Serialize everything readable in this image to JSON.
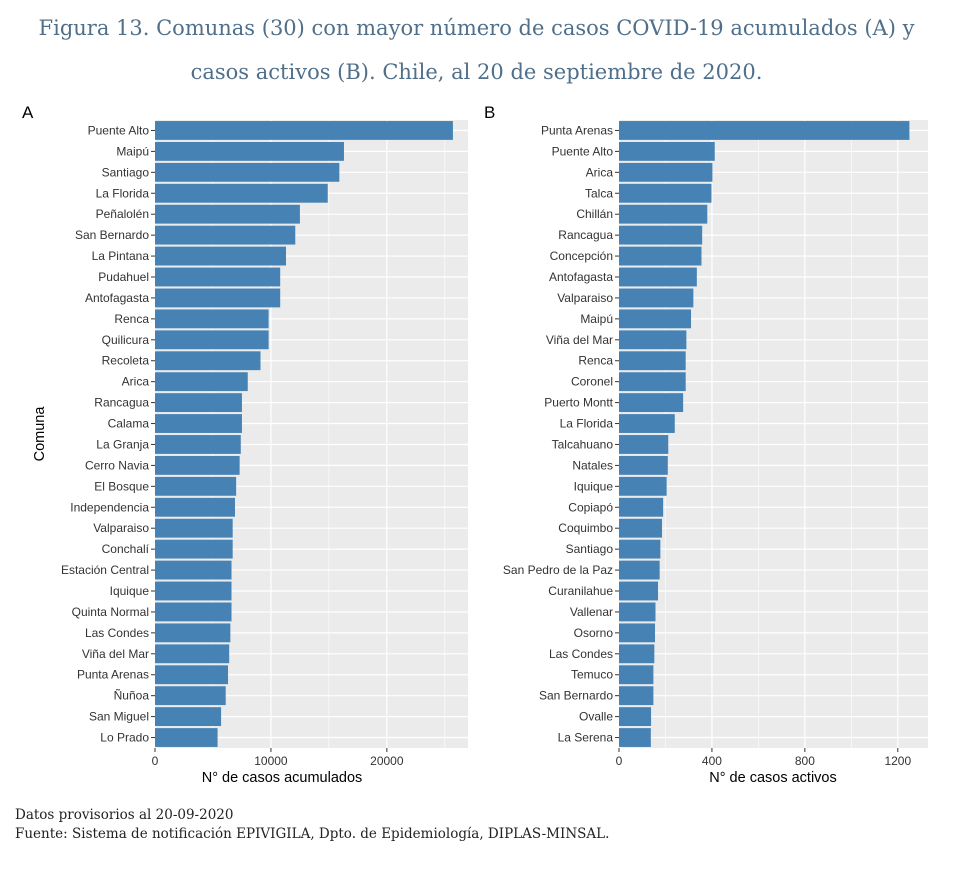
{
  "title_line1": "Figura 13. Comunas (30) con mayor número de casos COVID-19 acumulados (A) y",
  "title_line2": "casos activos (B). Chile, al 20 de septiembre de 2020.",
  "footer": {
    "line1": "Datos provisorios al 20-09-2020",
    "line2": "Fuente: Sistema de notificación EPIVIGILA, Dpto. de Epidemiología, DIPLAS-MINSAL."
  },
  "colors": {
    "bar": "#4682b4",
    "panel_bg": "#ebebeb",
    "grid": "#ffffff",
    "title": "#4f6f8a"
  },
  "chart_data": [
    {
      "type": "bar",
      "orientation": "horizontal",
      "panel": "A",
      "xlabel": "N° de casos acumulados",
      "ylabel": "Comuna",
      "xlim": [
        0,
        27000
      ],
      "xticks": [
        0,
        10000,
        20000
      ],
      "categories": [
        "Puente Alto",
        "Maipú",
        "Santiago",
        "La Florida",
        "Peñalolén",
        "San Bernardo",
        "La Pintana",
        "Pudahuel",
        "Antofagasta",
        "Renca",
        "Quilicura",
        "Recoleta",
        "Arica",
        "Rancagua",
        "Calama",
        "La Granja",
        "Cerro Navia",
        "El Bosque",
        "Independencia",
        "Valparaiso",
        "Conchalí",
        "Estación Central",
        "Iquique",
        "Quinta Normal",
        "Las Condes",
        "Viña del Mar",
        "Punta Arenas",
        "Ñuñoa",
        "San Miguel",
        "Lo Prado"
      ],
      "values": [
        25700,
        16300,
        15900,
        14900,
        12500,
        12100,
        11300,
        10800,
        10800,
        9800,
        9800,
        9100,
        8000,
        7500,
        7500,
        7400,
        7300,
        7000,
        6900,
        6700,
        6700,
        6600,
        6600,
        6600,
        6500,
        6400,
        6300,
        6100,
        5700,
        5400
      ]
    },
    {
      "type": "bar",
      "orientation": "horizontal",
      "panel": "B",
      "xlabel": "N° de casos activos",
      "ylabel": "",
      "xlim": [
        0,
        1330
      ],
      "xticks": [
        0,
        400,
        800,
        1200
      ],
      "categories": [
        "Punta Arenas",
        "Puente Alto",
        "Arica",
        "Talca",
        "Chillán",
        "Rancagua",
        "Concepción",
        "Antofagasta",
        "Valparaiso",
        "Maipú",
        "Viña del Mar",
        "Renca",
        "Coronel",
        "Puerto Montt",
        "La Florida",
        "Talcahuano",
        "Natales",
        "Iquique",
        "Copiapó",
        "Coquimbo",
        "Santiago",
        "San Pedro de la Paz",
        "Curanilahue",
        "Vallenar",
        "Osorno",
        "Las Condes",
        "Temuco",
        "San Bernardo",
        "Ovalle",
        "La Serena"
      ],
      "values": [
        1250,
        412,
        402,
        398,
        380,
        358,
        355,
        335,
        320,
        310,
        290,
        287,
        287,
        276,
        240,
        212,
        210,
        205,
        190,
        185,
        178,
        175,
        168,
        157,
        155,
        152,
        148,
        148,
        138,
        137
      ]
    }
  ]
}
